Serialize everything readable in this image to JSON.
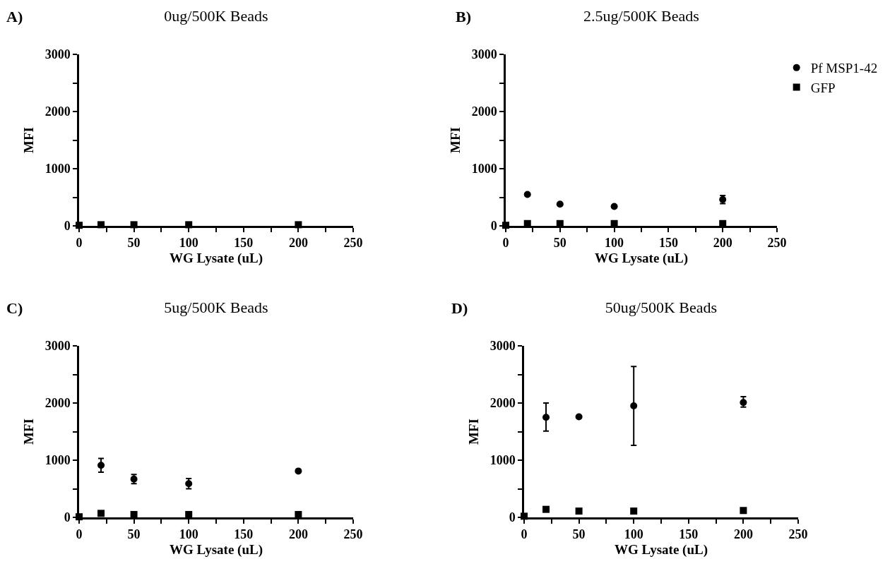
{
  "chart_data": [
    {
      "type": "scatter",
      "title": "0ug/500K Beads",
      "xlabel": "WG Lysate (uL)",
      "ylabel": "MFI",
      "annotations": [
        "A)"
      ],
      "x": [
        0,
        20,
        50,
        100,
        200
      ],
      "xlim": [
        0,
        250
      ],
      "ylim": [
        0,
        3000
      ],
      "xticks": [
        0,
        {
          "value": 25,
          "label": null
        },
        50,
        {
          "value": 75,
          "label": null
        },
        100,
        {
          "value": 125,
          "label": null
        },
        150,
        {
          "value": 175,
          "label": null
        },
        200,
        {
          "value": 225,
          "label": null
        },
        250
      ],
      "yticks": [
        0,
        {
          "value": 500,
          "label": null
        },
        1000,
        {
          "value": 1500,
          "label": null
        },
        2000,
        {
          "value": 2500,
          "label": null
        },
        3000
      ],
      "grid": false,
      "legend": false,
      "series": [
        {
          "color": "#000000",
          "marker": "square",
          "values": [
            10,
            20,
            20,
            20,
            20
          ]
        }
      ]
    },
    {
      "type": "scatter",
      "title": "2.5ug/500K Beads",
      "xlabel": "WG Lysate (uL)",
      "ylabel": "MFI",
      "annotations": [
        "B)"
      ],
      "x": [
        0,
        20,
        50,
        100,
        200
      ],
      "xlim": [
        0,
        250
      ],
      "ylim": [
        0,
        3000
      ],
      "xticks": [
        0,
        {
          "value": 25,
          "label": null
        },
        50,
        {
          "value": 75,
          "label": null
        },
        100,
        {
          "value": 125,
          "label": null
        },
        150,
        {
          "value": 175,
          "label": null
        },
        200,
        {
          "value": 225,
          "label": null
        },
        250
      ],
      "yticks": [
        0,
        {
          "value": 500,
          "label": null
        },
        1000,
        {
          "value": 1500,
          "label": null
        },
        2000,
        {
          "value": 2500,
          "label": null
        },
        3000
      ],
      "grid": false,
      "legend": "top right",
      "series": [
        {
          "name": "Pf MSP1-42",
          "color": "#000000",
          "marker": "circle",
          "values": [
            null,
            550,
            380,
            340,
            460
          ],
          "errors": [
            null,
            null,
            null,
            null,
            [
              390,
              530
            ]
          ]
        },
        {
          "name": "GFP",
          "color": "#000000",
          "marker": "square",
          "values": [
            10,
            40,
            40,
            40,
            40
          ]
        }
      ]
    },
    {
      "type": "scatter",
      "title": "5ug/500K Beads",
      "xlabel": "WG Lysate (uL)",
      "ylabel": "MFI",
      "annotations": [
        "C)"
      ],
      "x": [
        0,
        20,
        50,
        100,
        200
      ],
      "xlim": [
        0,
        250
      ],
      "ylim": [
        0,
        3000
      ],
      "xticks": [
        0,
        {
          "value": 25,
          "label": null
        },
        50,
        {
          "value": 75,
          "label": null
        },
        100,
        {
          "value": 125,
          "label": null
        },
        150,
        {
          "value": 175,
          "label": null
        },
        200,
        {
          "value": 225,
          "label": null
        },
        250
      ],
      "yticks": [
        0,
        {
          "value": 500,
          "label": null
        },
        1000,
        {
          "value": 1500,
          "label": null
        },
        2000,
        {
          "value": 2500,
          "label": null
        },
        3000
      ],
      "grid": false,
      "legend": false,
      "series": [
        {
          "color": "#000000",
          "marker": "circle",
          "values": [
            null,
            910,
            670,
            590,
            810
          ],
          "errors": [
            null,
            [
              790,
              1030
            ],
            [
              590,
              750
            ],
            [
              500,
              680
            ],
            null
          ]
        },
        {
          "color": "#000000",
          "marker": "square",
          "values": [
            10,
            70,
            50,
            50,
            50
          ]
        }
      ]
    },
    {
      "type": "scatter",
      "title": "50ug/500K Beads",
      "xlabel": "WG Lysate (uL)",
      "ylabel": "MFI",
      "annotations": [
        "D)"
      ],
      "x": [
        0,
        20,
        50,
        100,
        200
      ],
      "xlim": [
        0,
        250
      ],
      "ylim": [
        0,
        3000
      ],
      "xticks": [
        0,
        {
          "value": 25,
          "label": null
        },
        50,
        {
          "value": 75,
          "label": null
        },
        100,
        {
          "value": 125,
          "label": null
        },
        150,
        {
          "value": 175,
          "label": null
        },
        200,
        {
          "value": 225,
          "label": null
        },
        250
      ],
      "yticks": [
        0,
        {
          "value": 500,
          "label": null
        },
        1000,
        {
          "value": 1500,
          "label": null
        },
        2000,
        {
          "value": 2500,
          "label": null
        },
        3000
      ],
      "grid": false,
      "legend": false,
      "series": [
        {
          "color": "#000000",
          "marker": "circle",
          "values": [
            null,
            1750,
            1760,
            1950,
            2010
          ],
          "errors": [
            null,
            [
              1510,
              2000
            ],
            null,
            [
              1260,
              2640
            ],
            [
              1930,
              2110
            ]
          ]
        },
        {
          "color": "#000000",
          "marker": "square",
          "values": [
            20,
            140,
            110,
            110,
            120
          ]
        }
      ]
    }
  ]
}
